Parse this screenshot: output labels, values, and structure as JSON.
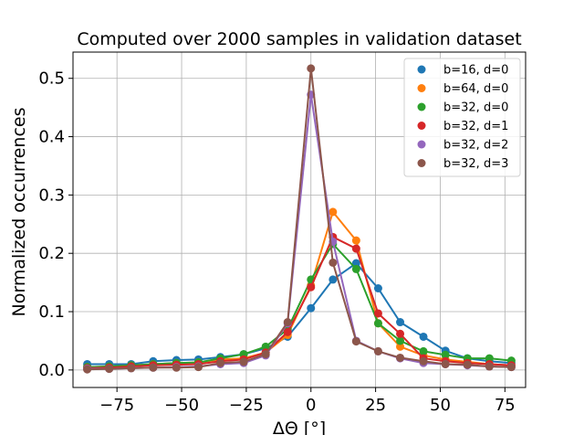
{
  "chart_data": {
    "type": "line",
    "title": "Computed over 2000 samples in validation dataset",
    "xlabel": "ΔΘ [°]",
    "ylabel": "Normalized occurrences",
    "xlim": [
      -92,
      83
    ],
    "ylim": [
      -0.03,
      0.545
    ],
    "xticks": [
      -75,
      -50,
      -25,
      0,
      25,
      50,
      75
    ],
    "yticks": [
      0.0,
      0.1,
      0.2,
      0.3,
      0.4,
      0.5
    ],
    "ytick_labels": [
      "0.0",
      "0.1",
      "0.2",
      "0.3",
      "0.4",
      "0.5"
    ],
    "xtick_labels": [
      "−75",
      "−50",
      "−25",
      "0",
      "25",
      "50",
      "75"
    ],
    "grid": true,
    "legend_position": "top-right",
    "x": [
      -86.5,
      -78,
      -69.5,
      -61,
      -52,
      -43.5,
      -35,
      -26,
      -17.5,
      -9,
      0,
      8.5,
      17.5,
      26,
      34.5,
      43.5,
      52,
      60.5,
      69,
      77.5
    ],
    "series": [
      {
        "name": "b=16, d=0",
        "color": "#1f77b4",
        "values": [
          0.01,
          0.01,
          0.01,
          0.015,
          0.017,
          0.018,
          0.022,
          0.027,
          0.037,
          0.057,
          0.106,
          0.155,
          0.183,
          0.14,
          0.082,
          0.057,
          0.033,
          0.02,
          0.015,
          0.012
        ]
      },
      {
        "name": "b=64, d=0",
        "color": "#ff7f0e",
        "values": [
          0.005,
          0.006,
          0.008,
          0.01,
          0.012,
          0.013,
          0.018,
          0.02,
          0.03,
          0.06,
          0.145,
          0.271,
          0.222,
          0.08,
          0.04,
          0.025,
          0.018,
          0.014,
          0.01,
          0.008
        ]
      },
      {
        "name": "b=32, d=0",
        "color": "#2ca02c",
        "values": [
          0.005,
          0.006,
          0.008,
          0.01,
          0.012,
          0.013,
          0.02,
          0.027,
          0.04,
          0.07,
          0.155,
          0.216,
          0.173,
          0.08,
          0.05,
          0.032,
          0.026,
          0.02,
          0.02,
          0.016
        ]
      },
      {
        "name": "b=32, d=1",
        "color": "#d62728",
        "values": [
          0.003,
          0.004,
          0.006,
          0.008,
          0.009,
          0.01,
          0.015,
          0.018,
          0.03,
          0.065,
          0.142,
          0.228,
          0.208,
          0.097,
          0.062,
          0.02,
          0.015,
          0.012,
          0.01,
          0.008
        ]
      },
      {
        "name": "b=32, d=2",
        "color": "#9467bd",
        "values": [
          0.002,
          0.002,
          0.003,
          0.004,
          0.005,
          0.006,
          0.01,
          0.012,
          0.025,
          0.08,
          0.472,
          0.22,
          0.05,
          0.032,
          0.02,
          0.012,
          0.01,
          0.008,
          0.006,
          0.005
        ]
      },
      {
        "name": "b=32, d=3",
        "color": "#8c564b",
        "values": [
          0.001,
          0.002,
          0.003,
          0.004,
          0.004,
          0.005,
          0.012,
          0.014,
          0.027,
          0.082,
          0.517,
          0.184,
          0.049,
          0.032,
          0.021,
          0.015,
          0.01,
          0.009,
          0.006,
          0.005
        ]
      }
    ]
  }
}
